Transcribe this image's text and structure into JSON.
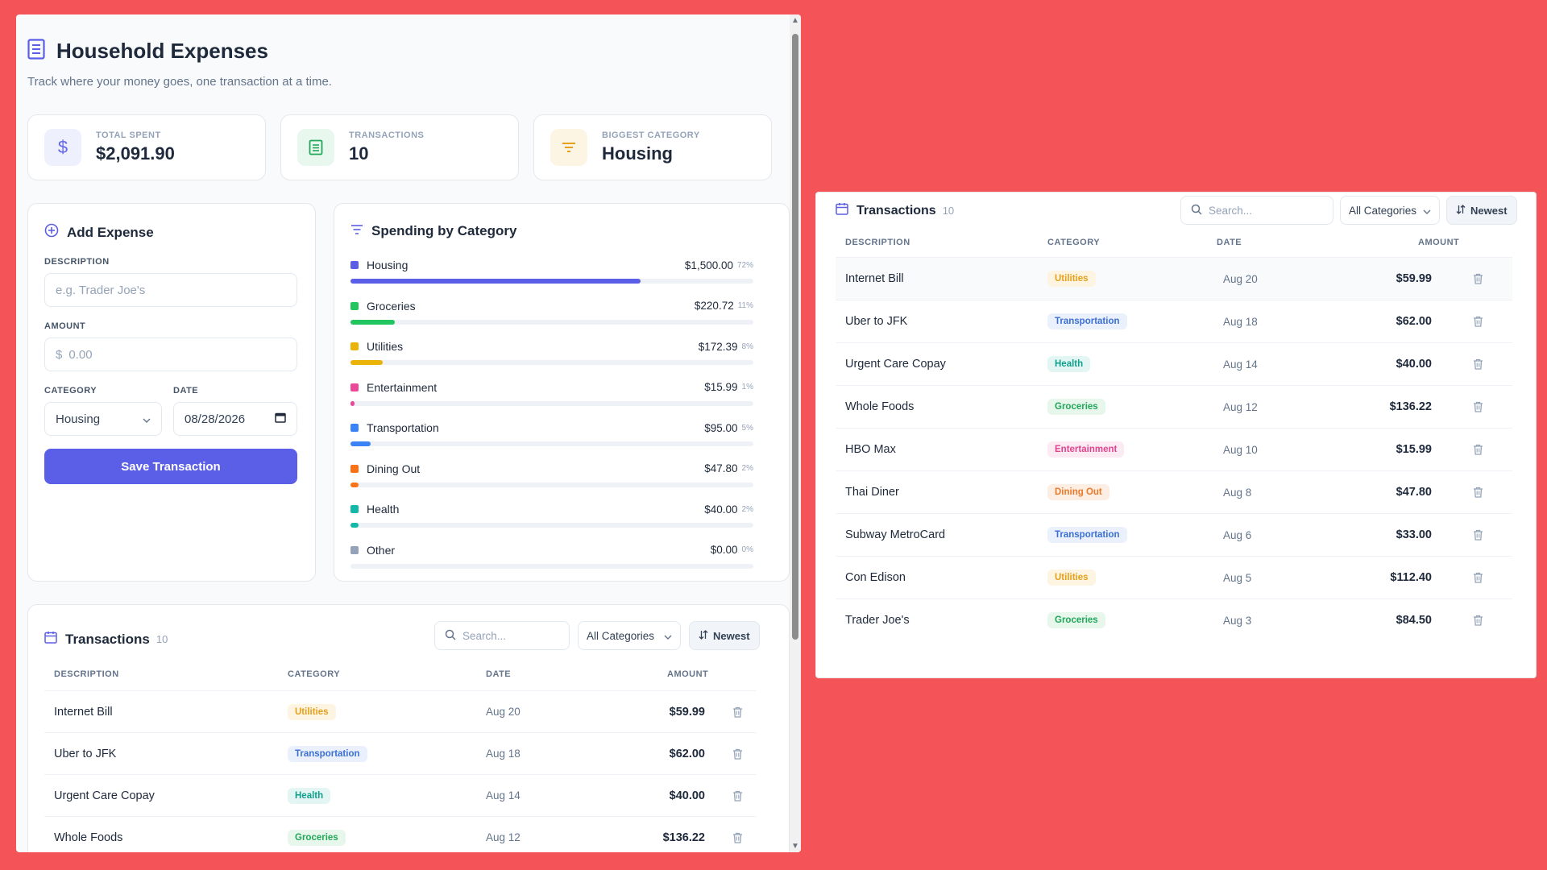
{
  "header": {
    "title": "Household Expenses",
    "subtitle": "Track where your money goes, one transaction at a time."
  },
  "stats": [
    {
      "label": "TOTAL SPENT",
      "value": "$2,091.90",
      "icon": "dollar-icon",
      "color": "#6366f1",
      "bg": "#eef0fd"
    },
    {
      "label": "TRANSACTIONS",
      "value": "10",
      "icon": "receipt-icon",
      "color": "#22a75a",
      "bg": "#e9f8ef"
    },
    {
      "label": "BIGGEST CATEGORY",
      "value": "Housing",
      "icon": "filter-icon",
      "color": "#e6a019",
      "bg": "#fdf5e3"
    }
  ],
  "add_expense": {
    "title": "Add Expense",
    "description_label": "DESCRIPTION",
    "description_placeholder": "e.g. Trader Joe's",
    "amount_label": "AMOUNT",
    "amount_prefix": "$",
    "amount_placeholder": "0.00",
    "category_label": "CATEGORY",
    "category_value": "Housing",
    "date_label": "DATE",
    "date_value": "08/28/2026",
    "save_label": "Save Transaction"
  },
  "spending": {
    "title": "Spending by Category",
    "categories": [
      {
        "name": "Housing",
        "amount": "$1,500.00",
        "pct": "72%",
        "fraction": 0.72,
        "color": "#5b5ee6"
      },
      {
        "name": "Groceries",
        "amount": "$220.72",
        "pct": "11%",
        "fraction": 0.11,
        "color": "#22c55e"
      },
      {
        "name": "Utilities",
        "amount": "$172.39",
        "pct": "8%",
        "fraction": 0.08,
        "color": "#eab308"
      },
      {
        "name": "Entertainment",
        "amount": "$15.99",
        "pct": "1%",
        "fraction": 0.01,
        "color": "#ec4899"
      },
      {
        "name": "Transportation",
        "amount": "$95.00",
        "pct": "5%",
        "fraction": 0.05,
        "color": "#3b82f6"
      },
      {
        "name": "Dining Out",
        "amount": "$47.80",
        "pct": "2%",
        "fraction": 0.02,
        "color": "#f97316"
      },
      {
        "name": "Health",
        "amount": "$40.00",
        "pct": "2%",
        "fraction": 0.02,
        "color": "#14b8a6"
      },
      {
        "name": "Other",
        "amount": "$0.00",
        "pct": "0%",
        "fraction": 0.0,
        "color": "#94a3b8"
      }
    ]
  },
  "transactions": {
    "title": "Transactions",
    "count": "10",
    "search_placeholder": "Search...",
    "filter_value": "All Categories",
    "sort_label": "Newest",
    "columns": [
      "DESCRIPTION",
      "CATEGORY",
      "DATE",
      "AMOUNT"
    ],
    "rows": [
      {
        "description": "Internet Bill",
        "category": "Utilities",
        "date": "Aug 20",
        "amount": "$59.99"
      },
      {
        "description": "Uber to JFK",
        "category": "Transportation",
        "date": "Aug 18",
        "amount": "$62.00"
      },
      {
        "description": "Urgent Care Copay",
        "category": "Health",
        "date": "Aug 14",
        "amount": "$40.00"
      },
      {
        "description": "Whole Foods",
        "category": "Groceries",
        "date": "Aug 12",
        "amount": "$136.22"
      },
      {
        "description": "HBO Max",
        "category": "Entertainment",
        "date": "Aug 10",
        "amount": "$15.99"
      },
      {
        "description": "Thai Diner",
        "category": "Dining Out",
        "date": "Aug 8",
        "amount": "$47.80"
      },
      {
        "description": "Subway MetroCard",
        "category": "Transportation",
        "date": "Aug 6",
        "amount": "$33.00"
      },
      {
        "description": "Con Edison",
        "category": "Utilities",
        "date": "Aug 5",
        "amount": "$112.40"
      },
      {
        "description": "Trader Joe's",
        "category": "Groceries",
        "date": "Aug 3",
        "amount": "$84.50"
      }
    ]
  },
  "badge_styles": {
    "Utilities": {
      "fg": "#e6a019",
      "bg": "#fdf4e1"
    },
    "Transportation": {
      "fg": "#3b6fd4",
      "bg": "#eaf1fc"
    },
    "Health": {
      "fg": "#0f9f8c",
      "bg": "#e3f6f3"
    },
    "Groceries": {
      "fg": "#22a75a",
      "bg": "#e7f7ec"
    },
    "Entertainment": {
      "fg": "#e0448f",
      "bg": "#fcebf3"
    },
    "Dining Out": {
      "fg": "#ea7a2a",
      "bg": "#fdeee3"
    }
  }
}
